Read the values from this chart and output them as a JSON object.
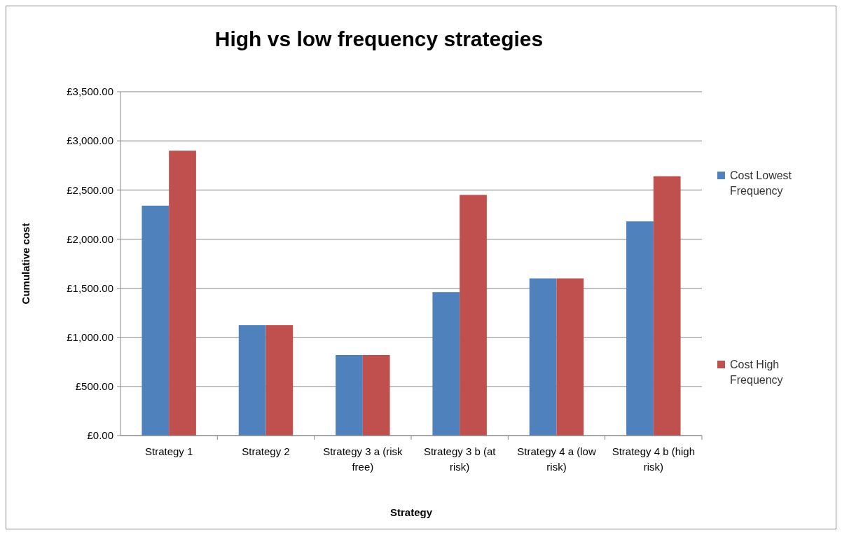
{
  "chart_data": {
    "type": "bar",
    "title": "High vs low frequency strategies",
    "xlabel": "Strategy",
    "ylabel": "Cumulative cost",
    "categories": [
      "Strategy 1",
      "Strategy 2",
      "Strategy 3 a (risk free)",
      "Strategy 3 b (at risk)",
      "Strategy 4 a (low risk)",
      "Strategy 4 b (high risk)"
    ],
    "series": [
      {
        "name": "Cost Lowest Frequency",
        "color": "#4f81bd",
        "values": [
          2340,
          1125,
          820,
          1460,
          1600,
          2180
        ]
      },
      {
        "name": "Cost High Frequency",
        "color": "#c0504d",
        "values": [
          2900,
          1125,
          820,
          2450,
          1600,
          2640
        ]
      }
    ],
    "ylim": [
      0,
      3500
    ],
    "yticks": [
      {
        "value": 0,
        "label": "£0.00"
      },
      {
        "value": 500,
        "label": "£500.00"
      },
      {
        "value": 1000,
        "label": "£1,000.00"
      },
      {
        "value": 1500,
        "label": "£1,500.00"
      },
      {
        "value": 2000,
        "label": "£2,000.00"
      },
      {
        "value": 2500,
        "label": "£2,500.00"
      },
      {
        "value": 3000,
        "label": "£3,000.00"
      },
      {
        "value": 3500,
        "label": "£3,500.00"
      }
    ],
    "grid": "y",
    "legend": "right"
  }
}
